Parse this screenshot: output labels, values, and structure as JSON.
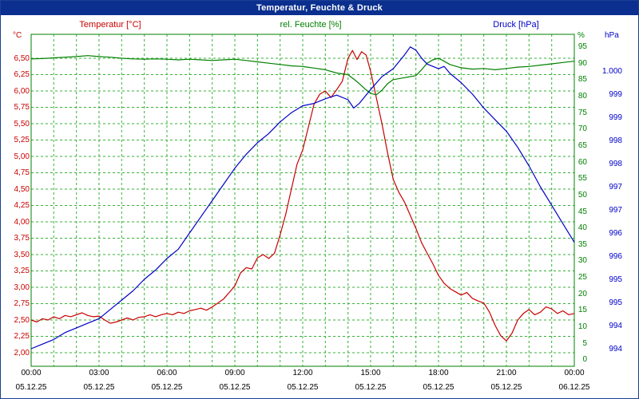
{
  "window": {
    "title": "Temperatur, Feuchte & Druck"
  },
  "chart_data": {
    "type": "line",
    "title": "Temperatur, Feuchte & Druck",
    "grid": {
      "color": "#35b235",
      "dash": "3 3",
      "border_color": "#008000",
      "background": "#ffffff"
    },
    "x": {
      "hours_range": [
        0,
        24
      ],
      "minor_grid_step_hours": 1,
      "major_tick_step_hours": 3,
      "tick_times": [
        "00:00",
        "03:00",
        "06:00",
        "09:00",
        "12:00",
        "15:00",
        "18:00",
        "21:00",
        "00:00"
      ],
      "tick_dates": [
        "05.12.25",
        "05.12.25",
        "05.12.25",
        "05.12.25",
        "05.12.25",
        "05.12.25",
        "05.12.25",
        "05.12.25",
        "06.12.25"
      ]
    },
    "axes": {
      "temperature": {
        "title": "Temperatur [°C]",
        "unit": "°C",
        "color": "#c80000",
        "min": 2.0,
        "max": 6.5,
        "step": 0.25,
        "ticks": [
          "6,50",
          "6,25",
          "6,00",
          "5,75",
          "5,50",
          "5,25",
          "5,00",
          "4,75",
          "4,50",
          "4,25",
          "4,00",
          "3,75",
          "3,50",
          "3,25",
          "3,00",
          "2,75",
          "2,50",
          "2,25",
          "2,00"
        ]
      },
      "humidity": {
        "title": "rel. Feuchte [%]",
        "unit": "%",
        "color": "#008000",
        "min": 0,
        "max": 95,
        "step": 5,
        "ticks": [
          "95",
          "90",
          "85",
          "80",
          "75",
          "70",
          "65",
          "60",
          "55",
          "50",
          "45",
          "40",
          "35",
          "30",
          "25",
          "20",
          "15",
          "10",
          "5",
          "0"
        ]
      },
      "pressure": {
        "title": "Druck [hPa]",
        "unit": "hPa",
        "color": "#0000c8",
        "min": 994.0,
        "max": 1000.0,
        "step": 0.5,
        "ticks": [
          "1.000",
          "999",
          "999",
          "998",
          "998",
          "997",
          "997",
          "996",
          "996",
          "995",
          "995",
          "994",
          "994"
        ]
      }
    },
    "series": [
      {
        "name": "Temperatur",
        "axis": "temperature",
        "color": "#c80000",
        "points": [
          [
            0,
            2.5
          ],
          [
            0.25,
            2.47
          ],
          [
            0.5,
            2.52
          ],
          [
            0.75,
            2.5
          ],
          [
            1,
            2.55
          ],
          [
            1.25,
            2.52
          ],
          [
            1.5,
            2.57
          ],
          [
            1.75,
            2.55
          ],
          [
            2,
            2.58
          ],
          [
            2.25,
            2.61
          ],
          [
            2.5,
            2.57
          ],
          [
            2.75,
            2.55
          ],
          [
            3,
            2.56
          ],
          [
            3.25,
            2.5
          ],
          [
            3.5,
            2.45
          ],
          [
            3.75,
            2.47
          ],
          [
            4,
            2.5
          ],
          [
            4.25,
            2.53
          ],
          [
            4.5,
            2.5
          ],
          [
            4.75,
            2.54
          ],
          [
            5,
            2.55
          ],
          [
            5.25,
            2.58
          ],
          [
            5.5,
            2.55
          ],
          [
            5.75,
            2.58
          ],
          [
            6,
            2.6
          ],
          [
            6.25,
            2.58
          ],
          [
            6.5,
            2.62
          ],
          [
            6.75,
            2.6
          ],
          [
            7,
            2.64
          ],
          [
            7.25,
            2.66
          ],
          [
            7.5,
            2.68
          ],
          [
            7.75,
            2.65
          ],
          [
            8,
            2.7
          ],
          [
            8.25,
            2.76
          ],
          [
            8.5,
            2.82
          ],
          [
            8.75,
            2.92
          ],
          [
            9,
            3.02
          ],
          [
            9.25,
            3.22
          ],
          [
            9.5,
            3.3
          ],
          [
            9.75,
            3.28
          ],
          [
            10,
            3.45
          ],
          [
            10.25,
            3.5
          ],
          [
            10.5,
            3.44
          ],
          [
            10.75,
            3.52
          ],
          [
            11,
            3.8
          ],
          [
            11.25,
            4.12
          ],
          [
            11.5,
            4.5
          ],
          [
            11.75,
            4.88
          ],
          [
            12,
            5.1
          ],
          [
            12.25,
            5.45
          ],
          [
            12.5,
            5.8
          ],
          [
            12.75,
            5.95
          ],
          [
            13,
            6.0
          ],
          [
            13.25,
            5.9
          ],
          [
            13.5,
            6.02
          ],
          [
            13.75,
            6.15
          ],
          [
            14,
            6.5
          ],
          [
            14.2,
            6.62
          ],
          [
            14.4,
            6.48
          ],
          [
            14.6,
            6.6
          ],
          [
            14.8,
            6.55
          ],
          [
            15,
            6.3
          ],
          [
            15.25,
            5.9
          ],
          [
            15.5,
            5.5
          ],
          [
            15.75,
            5.05
          ],
          [
            16,
            4.65
          ],
          [
            16.25,
            4.45
          ],
          [
            16.5,
            4.3
          ],
          [
            16.75,
            4.1
          ],
          [
            17,
            3.9
          ],
          [
            17.25,
            3.68
          ],
          [
            17.5,
            3.52
          ],
          [
            17.75,
            3.36
          ],
          [
            18,
            3.18
          ],
          [
            18.25,
            3.06
          ],
          [
            18.5,
            2.98
          ],
          [
            18.75,
            2.93
          ],
          [
            19,
            2.88
          ],
          [
            19.25,
            2.92
          ],
          [
            19.5,
            2.83
          ],
          [
            19.75,
            2.79
          ],
          [
            20,
            2.76
          ],
          [
            20.25,
            2.62
          ],
          [
            20.5,
            2.42
          ],
          [
            20.75,
            2.26
          ],
          [
            21,
            2.18
          ],
          [
            21.25,
            2.3
          ],
          [
            21.5,
            2.5
          ],
          [
            21.75,
            2.6
          ],
          [
            22,
            2.66
          ],
          [
            22.25,
            2.58
          ],
          [
            22.5,
            2.62
          ],
          [
            22.75,
            2.7
          ],
          [
            23,
            2.67
          ],
          [
            23.25,
            2.6
          ],
          [
            23.5,
            2.64
          ],
          [
            23.75,
            2.58
          ],
          [
            24,
            2.6
          ]
        ]
      },
      {
        "name": "rel. Feuchte",
        "axis": "humidity",
        "color": "#008000",
        "points": [
          [
            0,
            91.3
          ],
          [
            0.5,
            91.4
          ],
          [
            1,
            91.6
          ],
          [
            1.5,
            91.8
          ],
          [
            2,
            92.0
          ],
          [
            2.5,
            92.3
          ],
          [
            3,
            92.0
          ],
          [
            3.5,
            91.8
          ],
          [
            4,
            91.5
          ],
          [
            4.5,
            91.3
          ],
          [
            5,
            91.2
          ],
          [
            5.5,
            91.3
          ],
          [
            6,
            91.2
          ],
          [
            6.5,
            91.0
          ],
          [
            7,
            91.2
          ],
          [
            7.5,
            91.0
          ],
          [
            8,
            90.8
          ],
          [
            8.5,
            91.0
          ],
          [
            9,
            91.2
          ],
          [
            9.5,
            90.8
          ],
          [
            10,
            90.4
          ],
          [
            10.5,
            90.0
          ],
          [
            11,
            89.6
          ],
          [
            11.5,
            89.2
          ],
          [
            12,
            89.0
          ],
          [
            12.5,
            88.5
          ],
          [
            13,
            88.0
          ],
          [
            13.5,
            87.0
          ],
          [
            14,
            86.5
          ],
          [
            14.25,
            85.2
          ],
          [
            14.5,
            83.8
          ],
          [
            14.75,
            82.2
          ],
          [
            15,
            80.8
          ],
          [
            15.25,
            80.4
          ],
          [
            15.5,
            81.8
          ],
          [
            15.75,
            83.8
          ],
          [
            16,
            85.0
          ],
          [
            16.5,
            85.6
          ],
          [
            17,
            86.2
          ],
          [
            17.25,
            88.0
          ],
          [
            17.5,
            90.0
          ],
          [
            17.75,
            91.0
          ],
          [
            18,
            91.5
          ],
          [
            18.25,
            90.6
          ],
          [
            18.5,
            89.6
          ],
          [
            19,
            88.6
          ],
          [
            19.5,
            88.2
          ],
          [
            20,
            88.4
          ],
          [
            20.5,
            88.0
          ],
          [
            21,
            88.4
          ],
          [
            21.5,
            88.8
          ],
          [
            22,
            89.0
          ],
          [
            22.5,
            89.4
          ],
          [
            23,
            89.8
          ],
          [
            23.5,
            90.2
          ],
          [
            24,
            90.6
          ]
        ]
      },
      {
        "name": "Druck",
        "axis": "pressure",
        "color": "#0000c8",
        "points": [
          [
            0,
            994.0
          ],
          [
            0.5,
            994.1
          ],
          [
            1,
            994.2
          ],
          [
            1.5,
            994.35
          ],
          [
            2,
            994.45
          ],
          [
            2.5,
            994.55
          ],
          [
            3,
            994.65
          ],
          [
            3.5,
            994.85
          ],
          [
            4,
            995.05
          ],
          [
            4.5,
            995.25
          ],
          [
            5,
            995.5
          ],
          [
            5.5,
            995.7
          ],
          [
            6,
            995.95
          ],
          [
            6.5,
            996.15
          ],
          [
            7,
            996.5
          ],
          [
            7.5,
            996.85
          ],
          [
            8,
            997.2
          ],
          [
            8.5,
            997.55
          ],
          [
            9,
            997.9
          ],
          [
            9.5,
            998.2
          ],
          [
            10,
            998.45
          ],
          [
            10.5,
            998.65
          ],
          [
            11,
            998.9
          ],
          [
            11.5,
            999.1
          ],
          [
            12,
            999.25
          ],
          [
            12.5,
            999.3
          ],
          [
            13,
            999.4
          ],
          [
            13.5,
            999.48
          ],
          [
            14,
            999.38
          ],
          [
            14.25,
            999.2
          ],
          [
            14.5,
            999.3
          ],
          [
            15,
            999.6
          ],
          [
            15.5,
            999.88
          ],
          [
            16,
            1000.05
          ],
          [
            16.5,
            1000.35
          ],
          [
            16.75,
            1000.52
          ],
          [
            17,
            1000.45
          ],
          [
            17.25,
            1000.28
          ],
          [
            17.5,
            1000.15
          ],
          [
            18,
            1000.05
          ],
          [
            18.25,
            1000.1
          ],
          [
            18.5,
            999.95
          ],
          [
            19,
            999.75
          ],
          [
            19.5,
            999.5
          ],
          [
            20,
            999.2
          ],
          [
            20.5,
            998.95
          ],
          [
            21,
            998.7
          ],
          [
            21.5,
            998.35
          ],
          [
            22,
            997.95
          ],
          [
            22.5,
            997.5
          ],
          [
            23,
            997.1
          ],
          [
            23.5,
            996.7
          ],
          [
            24,
            996.3
          ]
        ]
      }
    ]
  }
}
